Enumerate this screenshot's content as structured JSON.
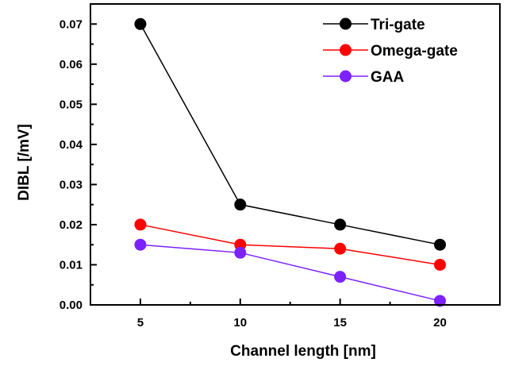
{
  "chart_data": {
    "type": "line",
    "title": "",
    "xlabel": "Channel length [nm]",
    "ylabel": "DIBL [/mV]",
    "x": [
      5,
      10,
      15,
      20
    ],
    "xticks": [
      "5",
      "10",
      "15",
      "20"
    ],
    "yticks": [
      "0.00",
      "0.01",
      "0.02",
      "0.03",
      "0.04",
      "0.05",
      "0.06",
      "0.07"
    ],
    "xlim": [
      2.5,
      23
    ],
    "ylim": [
      0,
      0.075
    ],
    "legend_position": "top-right",
    "series": [
      {
        "name": "Tri-gate",
        "color": "#000000",
        "values": [
          0.07,
          0.025,
          0.02,
          0.015
        ]
      },
      {
        "name": "Omega-gate",
        "color": "#ff0000",
        "values": [
          0.02,
          0.015,
          0.014,
          0.01
        ]
      },
      {
        "name": "GAA",
        "color": "#7b22ff",
        "values": [
          0.015,
          0.013,
          0.007,
          0.001
        ]
      }
    ]
  }
}
